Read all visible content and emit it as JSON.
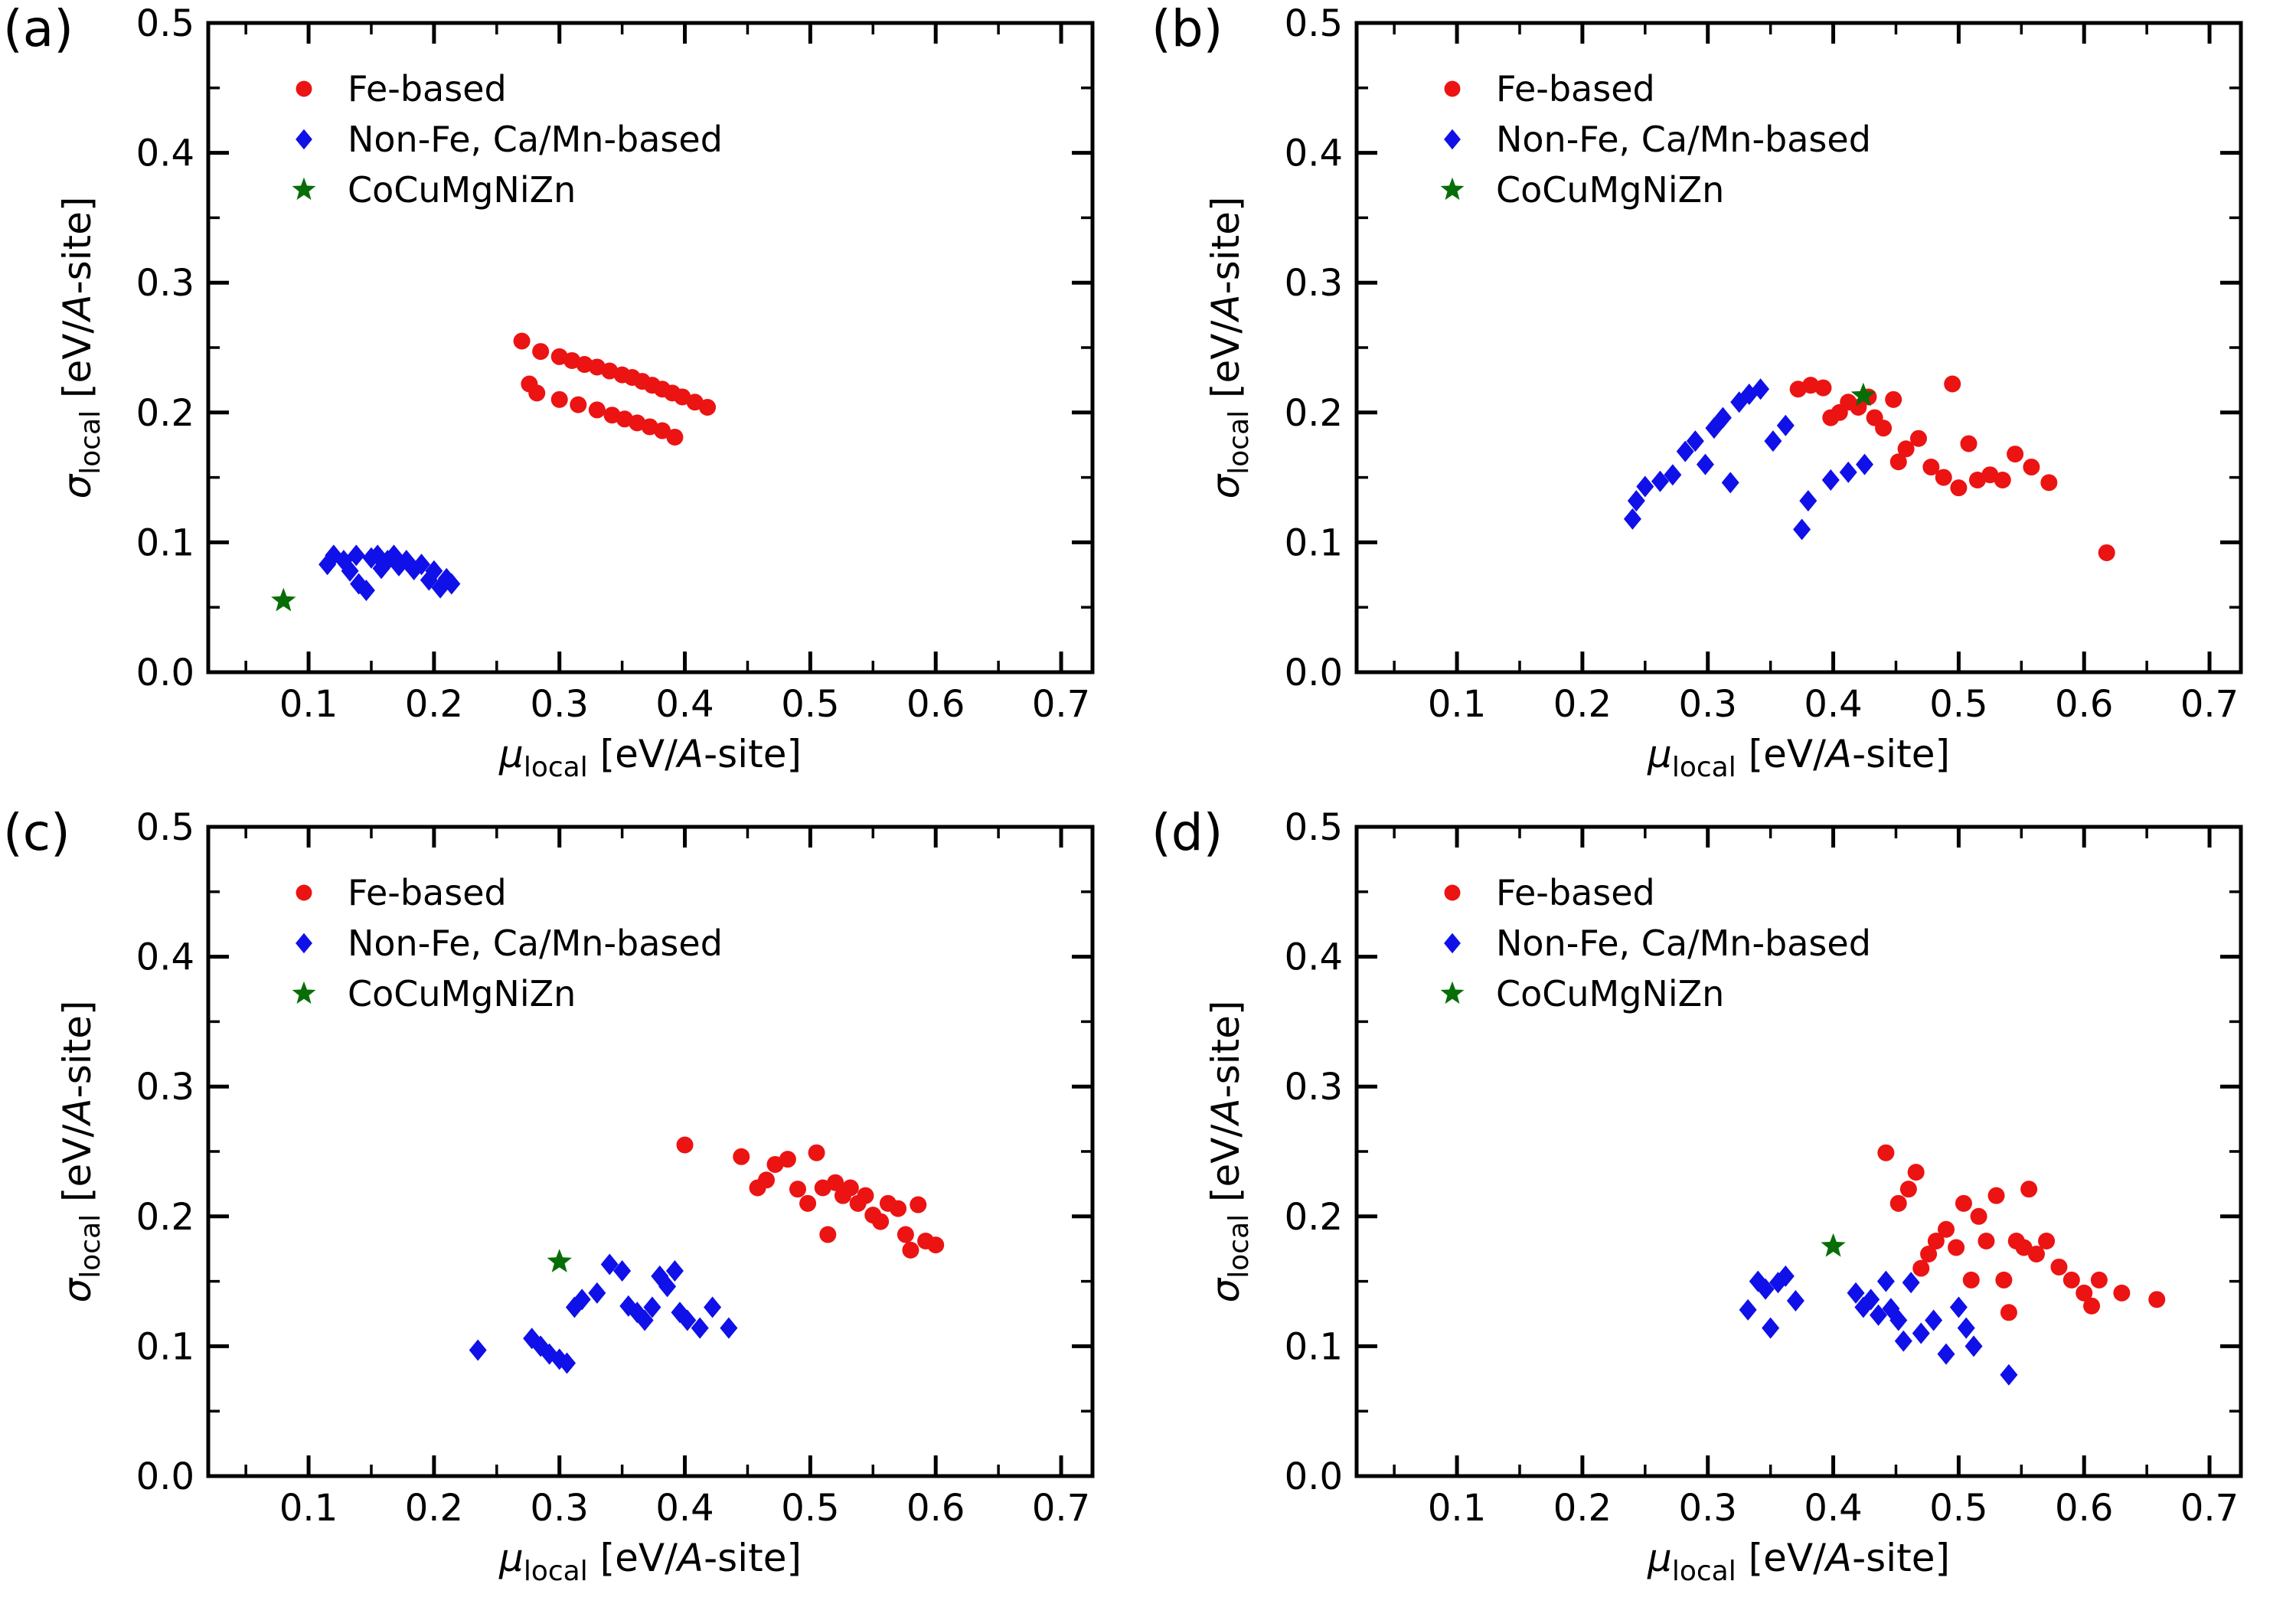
{
  "figure": {
    "background": "#ffffff"
  },
  "chart_data": {
    "type": "scatter",
    "shared": {
      "xlabel": {
        "symbol": "μ",
        "symbol_sub": "local",
        "unit_open": " [eV/",
        "unit_italic": "A",
        "unit_close": "-site]"
      },
      "ylabel": {
        "symbol": "σ",
        "symbol_sub": "local",
        "unit_open": " [eV/",
        "unit_italic": "A",
        "unit_close": "-site]"
      },
      "xlim": [
        0.02,
        0.725
      ],
      "ylim": [
        0.0,
        0.5
      ],
      "x_ticks": [
        0.1,
        0.2,
        0.3,
        0.4,
        0.5,
        0.6,
        0.7
      ],
      "x_tick_labels": [
        "0.1",
        "0.2",
        "0.3",
        "0.4",
        "0.5",
        "0.6",
        "0.7"
      ],
      "x_minor_ticks": [
        0.05,
        0.15,
        0.25,
        0.35,
        0.45,
        0.55,
        0.65
      ],
      "y_ticks": [
        0.0,
        0.1,
        0.2,
        0.3,
        0.4,
        0.5
      ],
      "y_tick_labels": [
        "0.0",
        "0.1",
        "0.2",
        "0.3",
        "0.4",
        "0.5"
      ],
      "y_minor_ticks": [
        0.05,
        0.15,
        0.25,
        0.35,
        0.45
      ],
      "grid": false,
      "legend_position": "upper-left-inside",
      "legend": [
        {
          "label": "Fe-based",
          "marker": "circle",
          "color": "#ec1313"
        },
        {
          "label": "Non-Fe, Ca/Mn-based",
          "marker": "diamond",
          "color": "#1010e8"
        },
        {
          "label": "CoCuMgNiZn",
          "marker": "star",
          "color": "#076e07"
        }
      ]
    },
    "panels": [
      {
        "tag": "(a)",
        "series": [
          {
            "name": "Fe-based",
            "marker": "circle",
            "color": "#ec1313",
            "points": [
              [
                0.27,
                0.255
              ],
              [
                0.285,
                0.247
              ],
              [
                0.3,
                0.243
              ],
              [
                0.31,
                0.24
              ],
              [
                0.32,
                0.237
              ],
              [
                0.33,
                0.235
              ],
              [
                0.34,
                0.232
              ],
              [
                0.35,
                0.229
              ],
              [
                0.358,
                0.227
              ],
              [
                0.366,
                0.224
              ],
              [
                0.374,
                0.221
              ],
              [
                0.382,
                0.218
              ],
              [
                0.39,
                0.215
              ],
              [
                0.398,
                0.212
              ],
              [
                0.408,
                0.208
              ],
              [
                0.418,
                0.204
              ],
              [
                0.276,
                0.222
              ],
              [
                0.282,
                0.215
              ],
              [
                0.3,
                0.21
              ],
              [
                0.315,
                0.206
              ],
              [
                0.33,
                0.202
              ],
              [
                0.342,
                0.198
              ],
              [
                0.352,
                0.195
              ],
              [
                0.362,
                0.192
              ],
              [
                0.372,
                0.189
              ],
              [
                0.382,
                0.186
              ],
              [
                0.392,
                0.181
              ]
            ]
          },
          {
            "name": "Non-Fe, Ca/Mn-based",
            "marker": "diamond",
            "color": "#1010e8",
            "points": [
              [
                0.115,
                0.083
              ],
              [
                0.12,
                0.09
              ],
              [
                0.128,
                0.086
              ],
              [
                0.133,
                0.078
              ],
              [
                0.138,
                0.09
              ],
              [
                0.14,
                0.068
              ],
              [
                0.146,
                0.063
              ],
              [
                0.15,
                0.088
              ],
              [
                0.155,
                0.09
              ],
              [
                0.158,
                0.08
              ],
              [
                0.163,
                0.086
              ],
              [
                0.168,
                0.09
              ],
              [
                0.172,
                0.082
              ],
              [
                0.178,
                0.086
              ],
              [
                0.184,
                0.079
              ],
              [
                0.19,
                0.083
              ],
              [
                0.196,
                0.071
              ],
              [
                0.2,
                0.078
              ],
              [
                0.205,
                0.065
              ],
              [
                0.21,
                0.072
              ],
              [
                0.214,
                0.068
              ]
            ]
          },
          {
            "name": "CoCuMgNiZn",
            "marker": "star",
            "color": "#076e07",
            "points": [
              [
                0.08,
                0.055
              ]
            ]
          }
        ]
      },
      {
        "tag": "(b)",
        "series": [
          {
            "name": "Fe-based",
            "marker": "circle",
            "color": "#ec1313",
            "points": [
              [
                0.372,
                0.218
              ],
              [
                0.382,
                0.221
              ],
              [
                0.392,
                0.219
              ],
              [
                0.398,
                0.196
              ],
              [
                0.405,
                0.2
              ],
              [
                0.412,
                0.208
              ],
              [
                0.42,
                0.204
              ],
              [
                0.428,
                0.212
              ],
              [
                0.433,
                0.196
              ],
              [
                0.44,
                0.188
              ],
              [
                0.448,
                0.21
              ],
              [
                0.452,
                0.162
              ],
              [
                0.458,
                0.172
              ],
              [
                0.468,
                0.18
              ],
              [
                0.478,
                0.158
              ],
              [
                0.488,
                0.15
              ],
              [
                0.495,
                0.222
              ],
              [
                0.5,
                0.142
              ],
              [
                0.508,
                0.176
              ],
              [
                0.515,
                0.148
              ],
              [
                0.525,
                0.152
              ],
              [
                0.535,
                0.148
              ],
              [
                0.545,
                0.168
              ],
              [
                0.558,
                0.158
              ],
              [
                0.572,
                0.146
              ],
              [
                0.618,
                0.092
              ]
            ]
          },
          {
            "name": "Non-Fe, Ca/Mn-based",
            "marker": "diamond",
            "color": "#1010e8",
            "points": [
              [
                0.24,
                0.118
              ],
              [
                0.243,
                0.132
              ],
              [
                0.25,
                0.143
              ],
              [
                0.262,
                0.147
              ],
              [
                0.272,
                0.152
              ],
              [
                0.282,
                0.17
              ],
              [
                0.29,
                0.178
              ],
              [
                0.298,
                0.16
              ],
              [
                0.305,
                0.188
              ],
              [
                0.312,
                0.196
              ],
              [
                0.318,
                0.146
              ],
              [
                0.325,
                0.208
              ],
              [
                0.333,
                0.214
              ],
              [
                0.342,
                0.218
              ],
              [
                0.352,
                0.178
              ],
              [
                0.362,
                0.19
              ],
              [
                0.375,
                0.11
              ],
              [
                0.38,
                0.132
              ],
              [
                0.398,
                0.148
              ],
              [
                0.412,
                0.154
              ],
              [
                0.425,
                0.16
              ]
            ]
          },
          {
            "name": "CoCuMgNiZn",
            "marker": "star",
            "color": "#076e07",
            "points": [
              [
                0.424,
                0.213
              ]
            ]
          }
        ]
      },
      {
        "tag": "(c)",
        "series": [
          {
            "name": "Fe-based",
            "marker": "circle",
            "color": "#ec1313",
            "points": [
              [
                0.4,
                0.255
              ],
              [
                0.445,
                0.246
              ],
              [
                0.458,
                0.222
              ],
              [
                0.465,
                0.228
              ],
              [
                0.472,
                0.24
              ],
              [
                0.482,
                0.244
              ],
              [
                0.49,
                0.221
              ],
              [
                0.498,
                0.21
              ],
              [
                0.505,
                0.249
              ],
              [
                0.51,
                0.222
              ],
              [
                0.514,
                0.186
              ],
              [
                0.52,
                0.226
              ],
              [
                0.526,
                0.216
              ],
              [
                0.532,
                0.222
              ],
              [
                0.538,
                0.21
              ],
              [
                0.544,
                0.216
              ],
              [
                0.55,
                0.201
              ],
              [
                0.556,
                0.196
              ],
              [
                0.562,
                0.21
              ],
              [
                0.57,
                0.206
              ],
              [
                0.576,
                0.186
              ],
              [
                0.58,
                0.174
              ],
              [
                0.586,
                0.209
              ],
              [
                0.592,
                0.181
              ],
              [
                0.6,
                0.178
              ]
            ]
          },
          {
            "name": "Non-Fe, Ca/Mn-based",
            "marker": "diamond",
            "color": "#1010e8",
            "points": [
              [
                0.235,
                0.097
              ],
              [
                0.278,
                0.106
              ],
              [
                0.285,
                0.1
              ],
              [
                0.292,
                0.094
              ],
              [
                0.3,
                0.09
              ],
              [
                0.306,
                0.087
              ],
              [
                0.312,
                0.13
              ],
              [
                0.318,
                0.136
              ],
              [
                0.33,
                0.141
              ],
              [
                0.34,
                0.163
              ],
              [
                0.35,
                0.158
              ],
              [
                0.355,
                0.131
              ],
              [
                0.362,
                0.126
              ],
              [
                0.368,
                0.12
              ],
              [
                0.374,
                0.13
              ],
              [
                0.38,
                0.154
              ],
              [
                0.386,
                0.146
              ],
              [
                0.392,
                0.158
              ],
              [
                0.396,
                0.126
              ],
              [
                0.402,
                0.12
              ],
              [
                0.412,
                0.114
              ],
              [
                0.422,
                0.13
              ],
              [
                0.435,
                0.114
              ]
            ]
          },
          {
            "name": "CoCuMgNiZn",
            "marker": "star",
            "color": "#076e07",
            "points": [
              [
                0.3,
                0.165
              ]
            ]
          }
        ]
      },
      {
        "tag": "(d)",
        "series": [
          {
            "name": "Fe-based",
            "marker": "circle",
            "color": "#ec1313",
            "points": [
              [
                0.442,
                0.249
              ],
              [
                0.452,
                0.21
              ],
              [
                0.46,
                0.221
              ],
              [
                0.466,
                0.234
              ],
              [
                0.47,
                0.16
              ],
              [
                0.476,
                0.171
              ],
              [
                0.482,
                0.181
              ],
              [
                0.49,
                0.19
              ],
              [
                0.498,
                0.176
              ],
              [
                0.504,
                0.21
              ],
              [
                0.51,
                0.151
              ],
              [
                0.516,
                0.2
              ],
              [
                0.522,
                0.181
              ],
              [
                0.53,
                0.216
              ],
              [
                0.536,
                0.151
              ],
              [
                0.54,
                0.126
              ],
              [
                0.546,
                0.181
              ],
              [
                0.552,
                0.176
              ],
              [
                0.556,
                0.221
              ],
              [
                0.562,
                0.171
              ],
              [
                0.57,
                0.181
              ],
              [
                0.58,
                0.161
              ],
              [
                0.59,
                0.151
              ],
              [
                0.6,
                0.141
              ],
              [
                0.606,
                0.131
              ],
              [
                0.612,
                0.151
              ],
              [
                0.63,
                0.141
              ],
              [
                0.658,
                0.136
              ]
            ]
          },
          {
            "name": "Non-Fe, Ca/Mn-based",
            "marker": "diamond",
            "color": "#1010e8",
            "points": [
              [
                0.332,
                0.128
              ],
              [
                0.34,
                0.15
              ],
              [
                0.346,
                0.144
              ],
              [
                0.35,
                0.114
              ],
              [
                0.356,
                0.149
              ],
              [
                0.362,
                0.154
              ],
              [
                0.37,
                0.135
              ],
              [
                0.418,
                0.141
              ],
              [
                0.424,
                0.13
              ],
              [
                0.43,
                0.136
              ],
              [
                0.436,
                0.124
              ],
              [
                0.442,
                0.15
              ],
              [
                0.446,
                0.129
              ],
              [
                0.452,
                0.12
              ],
              [
                0.456,
                0.104
              ],
              [
                0.462,
                0.149
              ],
              [
                0.47,
                0.11
              ],
              [
                0.48,
                0.12
              ],
              [
                0.49,
                0.094
              ],
              [
                0.5,
                0.13
              ],
              [
                0.506,
                0.114
              ],
              [
                0.512,
                0.1
              ],
              [
                0.54,
                0.078
              ]
            ]
          },
          {
            "name": "CoCuMgNiZn",
            "marker": "star",
            "color": "#076e07",
            "points": [
              [
                0.4,
                0.177
              ]
            ]
          }
        ]
      }
    ]
  }
}
